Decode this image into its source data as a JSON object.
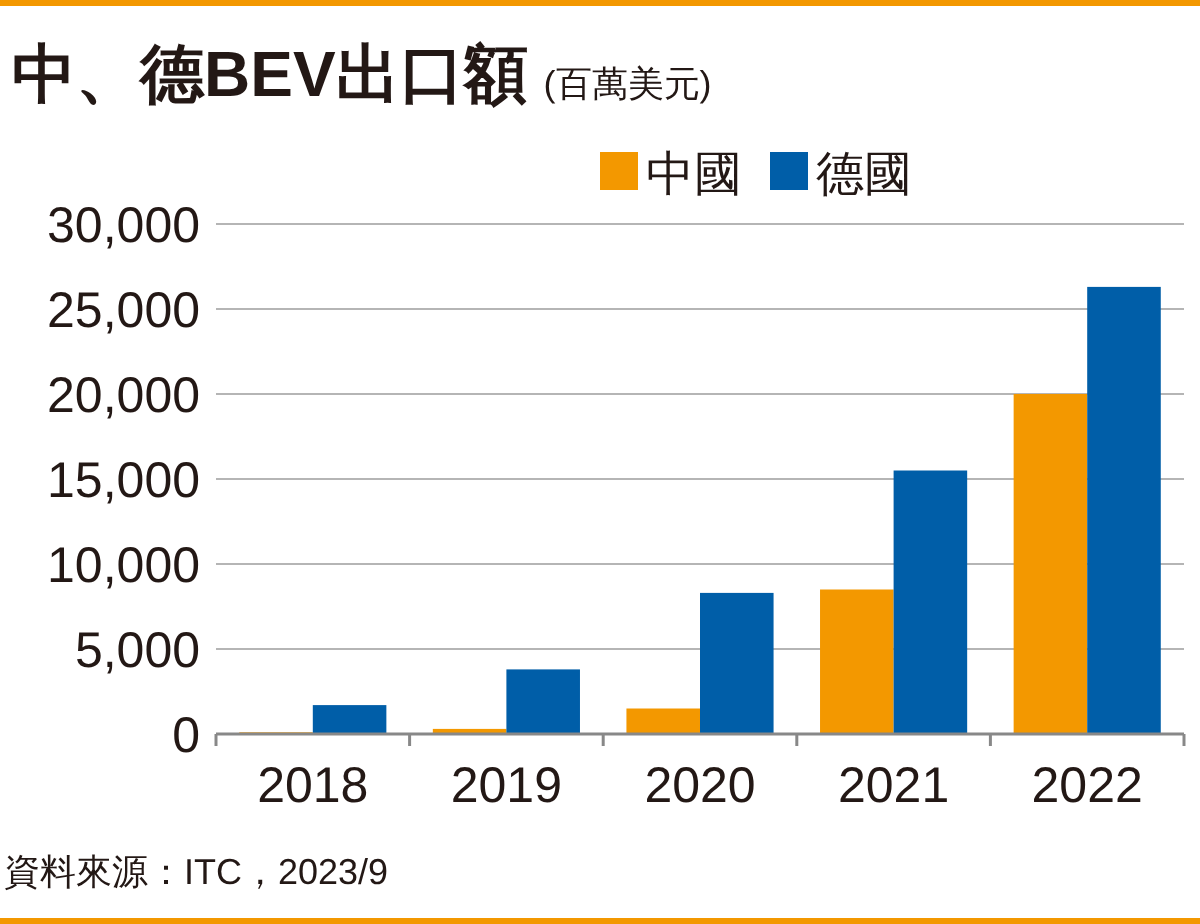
{
  "chart_data": {
    "type": "bar",
    "title": "中、德BEV出口額",
    "subtitle": "(百萬美元)",
    "categories": [
      "2018",
      "2019",
      "2020",
      "2021",
      "2022"
    ],
    "series": [
      {
        "name": "中國",
        "color": "#f39800",
        "values": [
          100,
          300,
          1500,
          8500,
          20000
        ]
      },
      {
        "name": "德國",
        "color": "#005ea8",
        "values": [
          1700,
          3800,
          8300,
          15500,
          26300
        ]
      }
    ],
    "ylim": [
      0,
      30000
    ],
    "yticks": [
      {
        "value": 0,
        "label": "0"
      },
      {
        "value": 5000,
        "label": "5,000"
      },
      {
        "value": 10000,
        "label": "10,000"
      },
      {
        "value": 15000,
        "label": "15,000"
      },
      {
        "value": 20000,
        "label": "20,000"
      },
      {
        "value": 25000,
        "label": "25,000"
      },
      {
        "value": 30000,
        "label": "30,000"
      }
    ],
    "grid": "y",
    "legend": "top right",
    "annotations": [
      "資料來源：ITC，2023/9"
    ]
  }
}
